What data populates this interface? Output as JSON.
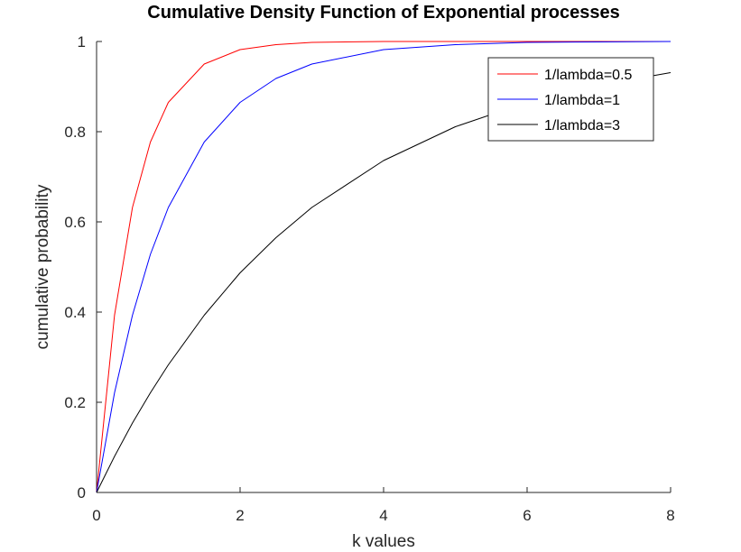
{
  "chart_data": {
    "type": "line",
    "title": "Cumulative Density Function of Exponential processes",
    "xlabel": "k values",
    "ylabel": "cumulative probability",
    "xlim": [
      0,
      8
    ],
    "ylim": [
      0,
      1
    ],
    "xticks": [
      0,
      2,
      4,
      6,
      8
    ],
    "xtick_labels": [
      "0",
      "2",
      "4",
      "6",
      "8"
    ],
    "yticks": [
      0,
      0.2,
      0.4,
      0.6,
      0.8,
      1
    ],
    "ytick_labels": [
      "0",
      "0.2",
      "0.4",
      "0.6",
      "0.8",
      "1"
    ],
    "grid": false,
    "legend_position": "top-right",
    "x": [
      0,
      0.25,
      0.5,
      0.75,
      1,
      1.5,
      2,
      2.5,
      3,
      4,
      5,
      6,
      7,
      8
    ],
    "series": [
      {
        "name": "1/lambda=0.5",
        "color": "#ff0000",
        "values": [
          0,
          0.393,
          0.632,
          0.777,
          0.865,
          0.95,
          0.982,
          0.993,
          0.998,
          1.0,
          1.0,
          1.0,
          1.0,
          1.0
        ]
      },
      {
        "name": "1/lambda=1",
        "color": "#0000ff",
        "values": [
          0,
          0.221,
          0.393,
          0.528,
          0.632,
          0.777,
          0.865,
          0.918,
          0.95,
          0.982,
          0.993,
          0.998,
          0.999,
          1.0
        ]
      },
      {
        "name": "1/lambda=3",
        "color": "#000000",
        "values": [
          0,
          0.08,
          0.154,
          0.221,
          0.283,
          0.393,
          0.487,
          0.565,
          0.632,
          0.736,
          0.811,
          0.865,
          0.903,
          0.931
        ]
      }
    ]
  }
}
